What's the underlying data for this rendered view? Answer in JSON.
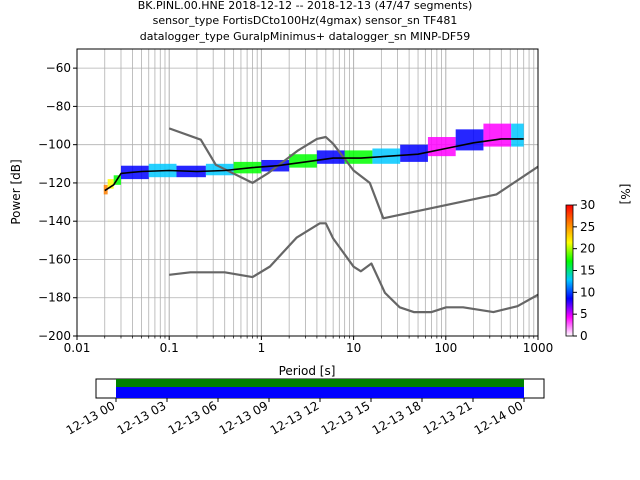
{
  "title": {
    "line1": "BK.PINL.00.HNE   2018-12-12 -- 2018-12-13  (47/47 segments)",
    "line2": "sensor_type FortisDCto100Hz(4gmax) sensor_sn TF481",
    "line3": "datalogger_type GuralpMinimus+ datalogger_sn MINP-DF59"
  },
  "chart_data": [
    {
      "type": "heatmap",
      "xlabel": "Period [s]",
      "ylabel": "Power [dB]",
      "xscale": "log",
      "xlim": [
        0.01,
        1000
      ],
      "ylim": [
        -200,
        -50
      ],
      "grid": true,
      "x_ticks": [
        {
          "value": 0.01,
          "label": "0.01"
        },
        {
          "value": 0.1,
          "label": "0.1"
        },
        {
          "value": 1,
          "label": "1"
        },
        {
          "value": 10,
          "label": "10"
        },
        {
          "value": 100,
          "label": "100"
        },
        {
          "value": 1000,
          "label": "1000"
        }
      ],
      "y_ticks": [
        {
          "value": -60,
          "label": "−60"
        },
        {
          "value": -80,
          "label": "−80"
        },
        {
          "value": -100,
          "label": "−100"
        },
        {
          "value": -120,
          "label": "−120"
        },
        {
          "value": -140,
          "label": "−140"
        },
        {
          "value": -160,
          "label": "−160"
        },
        {
          "value": -180,
          "label": "−180"
        },
        {
          "value": -200,
          "label": "−200"
        }
      ],
      "colorbar": {
        "label": "[%]",
        "range": [
          0,
          30
        ],
        "ticks": [
          "0",
          "5",
          "10",
          "15",
          "20",
          "25",
          "30"
        ],
        "colors": [
          "#ffffff",
          "#ff00ff",
          "#0000ff",
          "#00c8ff",
          "#00ff00",
          "#ffff00",
          "#ff8000",
          "#ff0000"
        ]
      },
      "series": [
        {
          "role": "noise-model-high",
          "color": "#666666",
          "x": [
            0.1,
            0.22,
            0.32,
            0.8,
            1.2,
            2.5,
            4.0,
            5.0,
            6.0,
            10,
            15,
            21,
            354,
            1000
          ],
          "y": [
            -91.5,
            -97.4,
            -110.5,
            -120.0,
            -114.7,
            -103.0,
            -97.0,
            -96.0,
            -99.5,
            -113.5,
            -120.0,
            -138.5,
            -126.0,
            -111.5
          ]
        },
        {
          "role": "noise-model-low",
          "color": "#666666",
          "x": [
            0.1,
            0.17,
            0.4,
            0.8,
            1.24,
            2.4,
            4.3,
            5.0,
            6.0,
            10,
            12,
            15.6,
            21.9,
            31.6,
            45,
            70,
            101,
            154,
            328,
            600,
            1000
          ],
          "y": [
            -168.0,
            -166.7,
            -166.7,
            -169.2,
            -163.7,
            -148.6,
            -141.1,
            -141.1,
            -149.0,
            -163.8,
            -166.2,
            -162.1,
            -177.5,
            -185.0,
            -187.5,
            -187.5,
            -185.0,
            -185.0,
            -187.5,
            -184.4,
            -178.4
          ]
        },
        {
          "role": "median",
          "color": "#000000",
          "x": [
            0.02,
            0.025,
            0.03,
            0.05,
            0.1,
            0.2,
            0.4,
            0.8,
            1.5,
            3,
            6,
            12,
            25,
            50,
            100,
            200,
            400,
            700
          ],
          "y": [
            -124,
            -121,
            -115,
            -114,
            -113.5,
            -114,
            -113.5,
            -112,
            -111,
            -109,
            -107,
            -107,
            -106,
            -105,
            -102,
            -99,
            -97,
            -97
          ]
        }
      ],
      "density": [
        {
          "x": [
            0.0195,
            0.0215
          ],
          "y": [
            -126,
            -121
          ],
          "color": "#ff8000"
        },
        {
          "x": [
            0.0215,
            0.025
          ],
          "y": [
            -123,
            -118
          ],
          "color": "#ffff00"
        },
        {
          "x": [
            0.025,
            0.03
          ],
          "y": [
            -121,
            -116
          ],
          "color": "#00ff00"
        },
        {
          "x": [
            0.03,
            0.06
          ],
          "y": [
            -118,
            -111
          ],
          "color": "#0000ff"
        },
        {
          "x": [
            0.06,
            0.12
          ],
          "y": [
            -117,
            -110
          ],
          "color": "#00c8ff"
        },
        {
          "x": [
            0.12,
            0.25
          ],
          "y": [
            -117,
            -111
          ],
          "color": "#0000ff"
        },
        {
          "x": [
            0.25,
            0.5
          ],
          "y": [
            -116,
            -110
          ],
          "color": "#00c8ff"
        },
        {
          "x": [
            0.5,
            1.0
          ],
          "y": [
            -115,
            -109
          ],
          "color": "#00ff00"
        },
        {
          "x": [
            1.0,
            2.0
          ],
          "y": [
            -114,
            -108
          ],
          "color": "#0000ff"
        },
        {
          "x": [
            2.0,
            4.0
          ],
          "y": [
            -112,
            -105
          ],
          "color": "#00ff00"
        },
        {
          "x": [
            4.0,
            8.0
          ],
          "y": [
            -110,
            -103
          ],
          "color": "#0000ff"
        },
        {
          "x": [
            8.0,
            16.0
          ],
          "y": [
            -110,
            -103
          ],
          "color": "#00ff00"
        },
        {
          "x": [
            16.0,
            32.0
          ],
          "y": [
            -110,
            -102
          ],
          "color": "#00c8ff"
        },
        {
          "x": [
            32.0,
            64.0
          ],
          "y": [
            -109,
            -100
          ],
          "color": "#0000ff"
        },
        {
          "x": [
            64.0,
            128.0
          ],
          "y": [
            -106,
            -96
          ],
          "color": "#ff00ff"
        },
        {
          "x": [
            128.0,
            256.0
          ],
          "y": [
            -103,
            -92
          ],
          "color": "#0000ff"
        },
        {
          "x": [
            256.0,
            512.0
          ],
          "y": [
            -101,
            -89
          ],
          "color": "#ff00ff"
        },
        {
          "x": [
            512.0,
            700.0
          ],
          "y": [
            -101,
            -89
          ],
          "color": "#00c8ff"
        }
      ]
    },
    {
      "type": "timeline",
      "ticks": [
        "12-13 00",
        "12-13 03",
        "12-13 06",
        "12-13 09",
        "12-13 12",
        "12-13 15",
        "12-13 18",
        "12-13 21",
        "12-14 00"
      ],
      "tick_hours": [
        0,
        3,
        6,
        9,
        12,
        15,
        18,
        21,
        24
      ],
      "bars": [
        {
          "start_hour": 0,
          "end_hour": 24,
          "color": "#008000",
          "role": "data-available"
        },
        {
          "start_hour": 0,
          "end_hour": 24,
          "color": "#0000ff",
          "role": "psd-segments"
        }
      ]
    }
  ]
}
